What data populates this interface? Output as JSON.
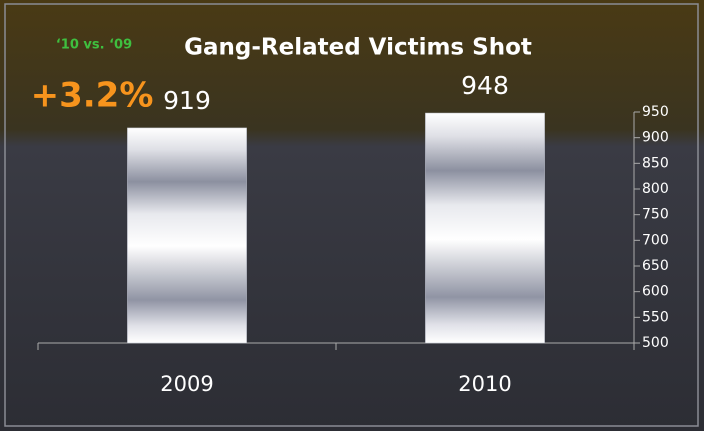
{
  "chart_data": {
    "type": "bar",
    "title": "Gang-Related Victims Shot",
    "annotations": [
      "‘10 vs. ‘09",
      "+3.2%"
    ],
    "categories": [
      "2009",
      "2010"
    ],
    "values": [
      919,
      948
    ],
    "color": "#b8bcc8",
    "ylim": [
      500,
      950
    ],
    "yticks": [
      500,
      550,
      600,
      650,
      700,
      750,
      800,
      850,
      900,
      950
    ],
    "grid": false
  }
}
